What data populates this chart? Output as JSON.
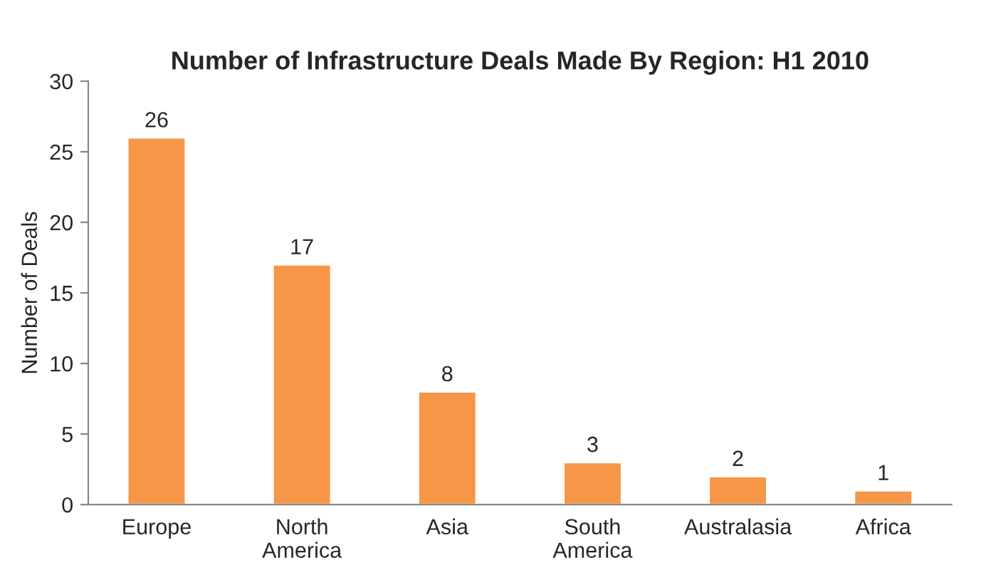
{
  "chart_data": {
    "type": "bar",
    "title": "Number of Infrastructure Deals Made By Region: H1 2010",
    "ylabel": "Number of Deals",
    "categories": [
      "Europe",
      "North\nAmerica",
      "Asia",
      "South\nAmerica",
      "Australasia",
      "Africa"
    ],
    "values": [
      26,
      17,
      8,
      3,
      2,
      1
    ],
    "color": "#f79646",
    "ylim": [
      0,
      30
    ],
    "yticks": [
      0,
      5,
      10,
      15,
      20,
      25,
      30
    ],
    "grid": false,
    "data_labels": true
  }
}
